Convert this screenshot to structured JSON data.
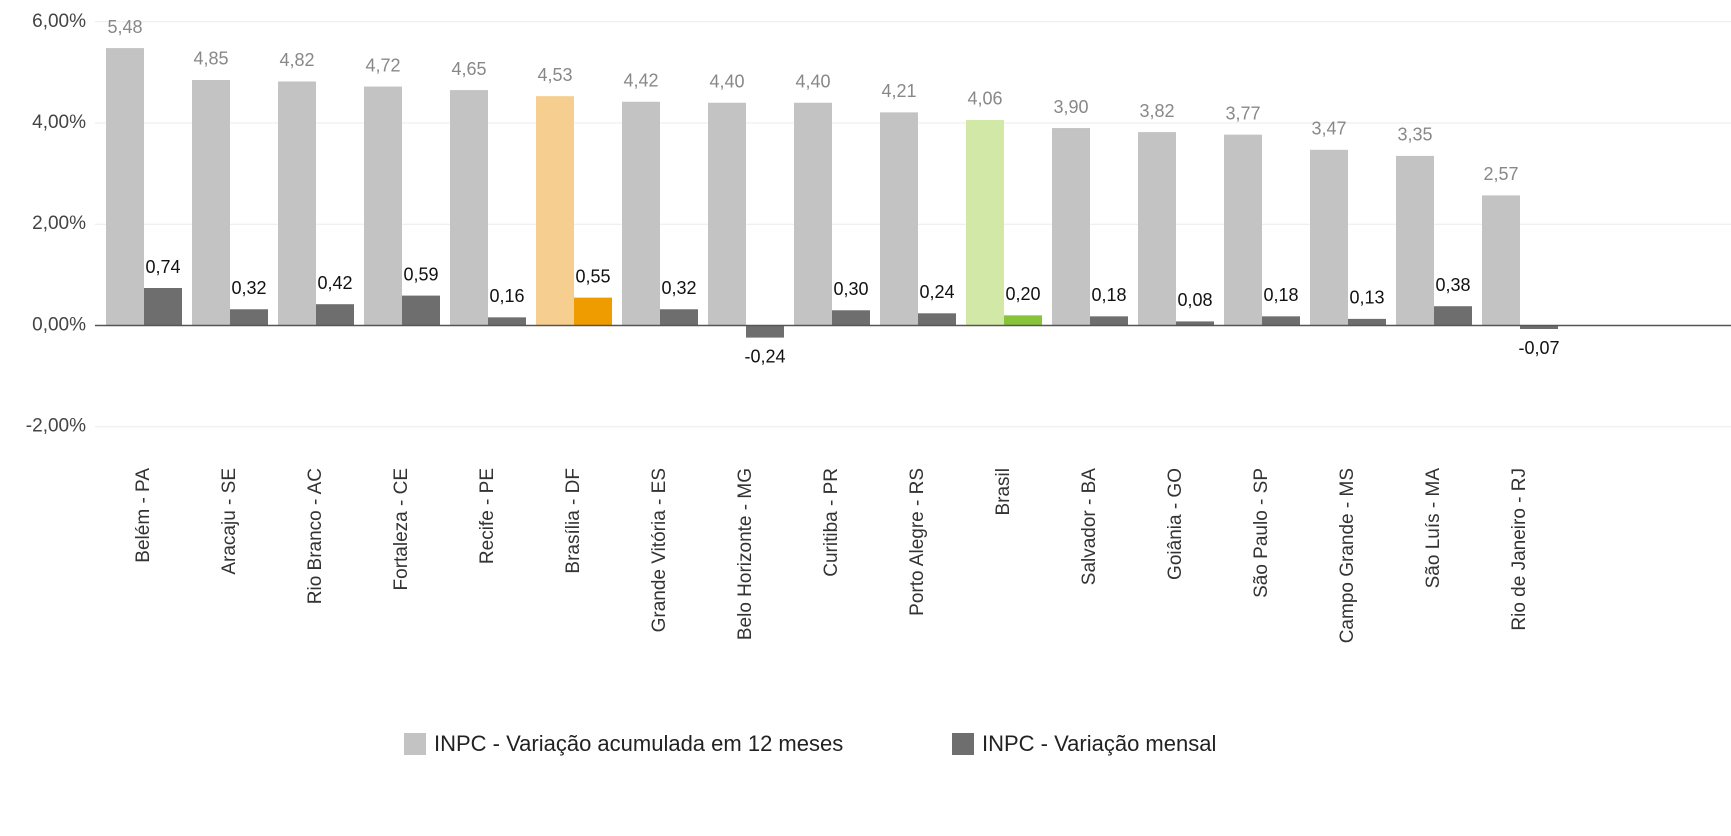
{
  "chart_data": {
    "type": "bar",
    "categories": [
      "Belém - PA",
      "Aracaju - SE",
      "Rio Branco - AC",
      "Fortaleza - CE",
      "Recife - PE",
      "Brasília - DF",
      "Grande Vitória - ES",
      "Belo Horizonte - MG",
      "Curitiba - PR",
      "Porto Alegre - RS",
      "Brasil",
      "Salvador - BA",
      "Goiânia - GO",
      "São Paulo - SP",
      "Campo Grande - MS",
      "São Luís - MA",
      "Rio de Janeiro - RJ"
    ],
    "series": [
      {
        "name": "INPC - Variação acumulada em 12 meses",
        "color": "#c3c3c3",
        "colors": [
          "#c3c3c3",
          "#c3c3c3",
          "#c3c3c3",
          "#c3c3c3",
          "#c3c3c3",
          "#f6ce8f",
          "#c3c3c3",
          "#c3c3c3",
          "#c3c3c3",
          "#c3c3c3",
          "#d2e8a6",
          "#c3c3c3",
          "#c3c3c3",
          "#c3c3c3",
          "#c3c3c3",
          "#c3c3c3",
          "#c3c3c3"
        ],
        "values": [
          5.48,
          4.85,
          4.82,
          4.72,
          4.65,
          4.53,
          4.42,
          4.4,
          4.4,
          4.21,
          4.06,
          3.9,
          3.82,
          3.77,
          3.47,
          3.35,
          2.57
        ],
        "value_labels": [
          "5,48",
          "4,85",
          "4,82",
          "4,72",
          "4,65",
          "4,53",
          "4,42",
          "4,40",
          "4,40",
          "4,21",
          "4,06",
          "3,90",
          "3,82",
          "3,77",
          "3,47",
          "3,35",
          "2,57"
        ]
      },
      {
        "name": "INPC - Variação mensal",
        "color": "#6e6e6e",
        "colors": [
          "#6e6e6e",
          "#6e6e6e",
          "#6e6e6e",
          "#6e6e6e",
          "#6e6e6e",
          "#ee9c00",
          "#6e6e6e",
          "#6e6e6e",
          "#6e6e6e",
          "#6e6e6e",
          "#88c43a",
          "#6e6e6e",
          "#6e6e6e",
          "#6e6e6e",
          "#6e6e6e",
          "#6e6e6e",
          "#6e6e6e"
        ],
        "values": [
          0.74,
          0.32,
          0.42,
          0.59,
          0.16,
          0.55,
          0.32,
          -0.24,
          0.3,
          0.24,
          0.2,
          0.18,
          0.08,
          0.18,
          0.13,
          0.38,
          -0.07
        ],
        "value_labels": [
          "0,74",
          "0,32",
          "0,42",
          "0,59",
          "0,16",
          "0,55",
          "0,32",
          "-0,24",
          "0,30",
          "0,24",
          "0,20",
          "0,18",
          "0,08",
          "0,18",
          "0,13",
          "0,38",
          "-0,07"
        ]
      }
    ],
    "ylim": [
      -2.5,
      6.43
    ],
    "yticks": [
      {
        "value": -2,
        "label": "-2,00%"
      },
      {
        "value": 0,
        "label": "0,00%"
      },
      {
        "value": 2,
        "label": "2,00%"
      },
      {
        "value": 4,
        "label": "4,00%"
      },
      {
        "value": 6,
        "label": "6,00%"
      }
    ],
    "grid": true,
    "legend": "bottom"
  }
}
